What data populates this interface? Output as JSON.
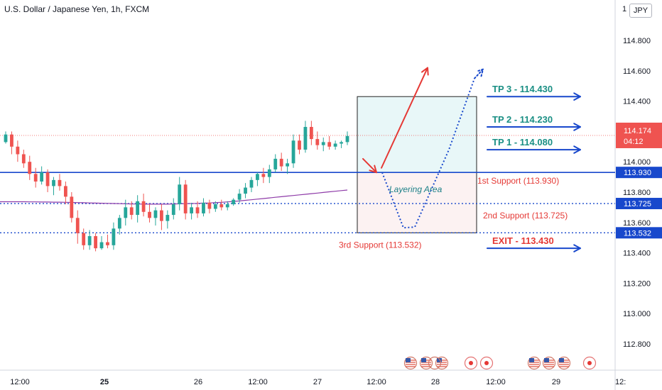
{
  "header": {
    "title": "U.S. Dollar / Japanese Yen, 1h, FXCM",
    "currency_button": "JPY",
    "top_axis_partial": "1"
  },
  "colors": {
    "up": "#26a69a",
    "down": "#ef5350",
    "support_line": "#1848cc",
    "tp_text": "#1a8f84",
    "exit_text": "#e53935",
    "arrow_blue": "#1848cc",
    "arrow_red": "#e53935",
    "ma": "#8e3ba8",
    "price_tag": "#ef5350",
    "box_top_fill": "#e8f7f8",
    "box_bottom_fill": "#fcf2f2"
  },
  "chart_data": {
    "type": "candlestick",
    "title": "U.S. Dollar / Japanese Yen, 1h, FXCM",
    "x_labels": [
      "12:00",
      "25",
      "26",
      "12:00",
      "27",
      "12:00",
      "28",
      "12:00",
      "29",
      "12:"
    ],
    "y_ticks": [
      "114.800",
      "114.600",
      "114.400",
      "114.000",
      "113.800",
      "113.600",
      "113.400",
      "113.200",
      "113.000",
      "112.800"
    ],
    "ylim": [
      112.72,
      115.02
    ],
    "last_price": {
      "value": "114.174",
      "countdown": "04:12",
      "partial": "114.200"
    },
    "levels": [
      {
        "name": "1st Support",
        "value": 113.93,
        "price_label": "113.930",
        "text": "1st Support (113.930)",
        "style": "solid"
      },
      {
        "name": "2nd Support",
        "value": 113.725,
        "price_label": "113.725",
        "text": "2nd Support (113.725)",
        "style": "dotted"
      },
      {
        "name": "3rd Support",
        "value": 113.532,
        "price_label": "113.532",
        "text": "3rd Support (113.532)",
        "style": "dotted"
      }
    ],
    "targets": [
      {
        "text": "TP 3 - 114.430",
        "value": 114.43
      },
      {
        "text": "TP 2 - 114.230",
        "value": 114.23
      },
      {
        "text": "TP 1 - 114.080",
        "value": 114.08
      },
      {
        "text": "EXIT - 113.430",
        "value": 113.43
      }
    ],
    "zone_label": "Layering Area",
    "candles": [
      [
        114.13,
        114.2,
        114.12,
        114.18
      ],
      [
        114.18,
        114.2,
        114.05,
        114.1
      ],
      [
        114.1,
        114.14,
        114.0,
        114.05
      ],
      [
        114.05,
        114.08,
        113.96,
        113.99
      ],
      [
        114.0,
        114.04,
        113.88,
        113.92
      ],
      [
        113.92,
        113.96,
        113.83,
        113.87
      ],
      [
        113.87,
        113.97,
        113.85,
        113.93
      ],
      [
        113.93,
        113.95,
        113.8,
        113.84
      ],
      [
        113.84,
        113.9,
        113.78,
        113.88
      ],
      [
        113.88,
        113.92,
        113.81,
        113.84
      ],
      [
        113.84,
        113.87,
        113.72,
        113.77
      ],
      [
        113.77,
        113.8,
        113.6,
        113.63
      ],
      [
        113.63,
        113.68,
        113.46,
        113.53
      ],
      [
        113.53,
        113.56,
        113.42,
        113.45
      ],
      [
        113.45,
        113.55,
        113.42,
        113.51
      ],
      [
        113.51,
        113.53,
        113.41,
        113.43
      ],
      [
        113.43,
        113.51,
        113.42,
        113.47
      ],
      [
        113.47,
        113.52,
        113.43,
        113.45
      ],
      [
        113.45,
        113.6,
        113.42,
        113.56
      ],
      [
        113.56,
        113.65,
        113.52,
        113.63
      ],
      [
        113.63,
        113.75,
        113.58,
        113.7
      ],
      [
        113.7,
        113.74,
        113.62,
        113.65
      ],
      [
        113.65,
        113.78,
        113.6,
        113.74
      ],
      [
        113.74,
        113.79,
        113.64,
        113.67
      ],
      [
        113.67,
        113.72,
        113.6,
        113.63
      ],
      [
        113.63,
        113.7,
        113.58,
        113.68
      ],
      [
        113.68,
        113.72,
        113.55,
        113.61
      ],
      [
        113.61,
        113.68,
        113.56,
        113.65
      ],
      [
        113.65,
        113.76,
        113.62,
        113.72
      ],
      [
        113.72,
        113.9,
        113.68,
        113.85
      ],
      [
        113.85,
        113.88,
        113.62,
        113.66
      ],
      [
        113.66,
        113.73,
        113.62,
        113.7
      ],
      [
        113.7,
        113.74,
        113.63,
        113.66
      ],
      [
        113.66,
        113.76,
        113.64,
        113.73
      ],
      [
        113.73,
        113.75,
        113.66,
        113.69
      ],
      [
        113.69,
        113.74,
        113.67,
        113.72
      ],
      [
        113.72,
        113.75,
        113.68,
        113.7
      ],
      [
        113.7,
        113.74,
        113.68,
        113.72
      ],
      [
        113.72,
        113.76,
        113.71,
        113.75
      ],
      [
        113.75,
        113.82,
        113.73,
        113.79
      ],
      [
        113.79,
        113.86,
        113.76,
        113.83
      ],
      [
        113.83,
        113.9,
        113.8,
        113.88
      ],
      [
        113.88,
        113.93,
        113.84,
        113.92
      ],
      [
        113.92,
        113.96,
        113.86,
        113.9
      ],
      [
        113.9,
        113.98,
        113.86,
        113.95
      ],
      [
        113.95,
        114.05,
        113.93,
        114.02
      ],
      [
        114.02,
        114.06,
        113.94,
        113.97
      ],
      [
        113.97,
        114.02,
        113.92,
        113.99
      ],
      [
        113.99,
        114.18,
        113.96,
        114.14
      ],
      [
        114.14,
        114.18,
        114.05,
        114.08
      ],
      [
        114.08,
        114.27,
        114.06,
        114.23
      ],
      [
        114.23,
        114.27,
        114.11,
        114.15
      ],
      [
        114.15,
        114.2,
        114.08,
        114.11
      ],
      [
        114.11,
        114.16,
        114.07,
        114.13
      ],
      [
        114.13,
        114.17,
        114.08,
        114.1
      ],
      [
        114.1,
        114.14,
        114.08,
        114.12
      ],
      [
        114.12,
        114.14,
        114.09,
        114.13
      ],
      [
        114.13,
        114.2,
        114.11,
        114.17
      ]
    ],
    "ma": [
      113.737,
      113.737,
      113.737,
      113.737,
      113.736,
      113.736,
      113.735,
      113.735,
      113.734,
      113.734,
      113.733,
      113.732,
      113.731,
      113.73,
      113.729,
      113.728,
      113.727,
      113.726,
      113.725,
      113.724,
      113.723,
      113.722,
      113.722,
      113.721,
      113.721,
      113.721,
      113.721,
      113.721,
      113.722,
      113.723,
      113.724,
      113.725,
      113.726,
      113.728,
      113.729,
      113.731,
      113.733,
      113.736,
      113.739,
      113.742,
      113.746,
      113.75,
      113.754,
      113.758,
      113.762,
      113.766,
      113.77,
      113.774,
      113.778,
      113.782,
      113.786,
      113.79,
      113.794,
      113.798,
      113.802,
      113.806,
      113.81,
      113.814
    ],
    "event_icons": {
      "groups": [
        {
          "kind": "flag",
          "count": 3
        },
        {
          "kind": "dot",
          "count": 2
        },
        {
          "kind": "flag",
          "count": 4
        },
        {
          "kind": "dot",
          "count": 1
        }
      ]
    }
  }
}
